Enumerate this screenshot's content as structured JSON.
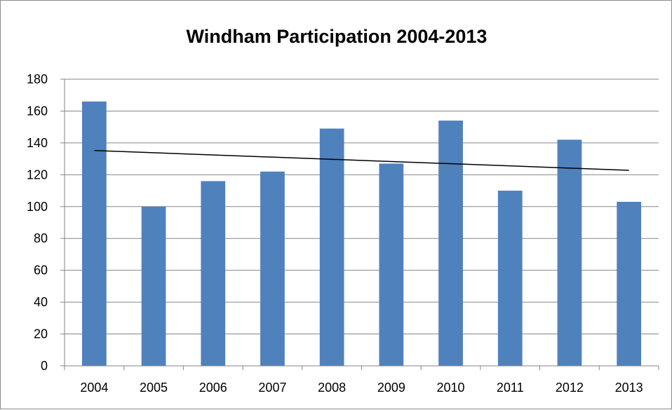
{
  "chart_data": {
    "type": "bar",
    "title": "Windham Participation 2004-2013",
    "xlabel": "",
    "ylabel": "",
    "categories": [
      "2004",
      "2005",
      "2006",
      "2007",
      "2008",
      "2009",
      "2010",
      "2011",
      "2012",
      "2013"
    ],
    "values": [
      166,
      100,
      116,
      122,
      149,
      127,
      154,
      110,
      142,
      103
    ],
    "ylim": [
      0,
      180
    ],
    "yticks": [
      "0",
      "20",
      "40",
      "60",
      "80",
      "100",
      "120",
      "140",
      "160",
      "180"
    ],
    "grid": true,
    "legend": "none",
    "trendline": {
      "type": "linear",
      "start": 135.2,
      "end": 122.8
    },
    "colors": {
      "bar": "#4f81bd",
      "grid": "#868686",
      "trendline": "#000000"
    }
  }
}
